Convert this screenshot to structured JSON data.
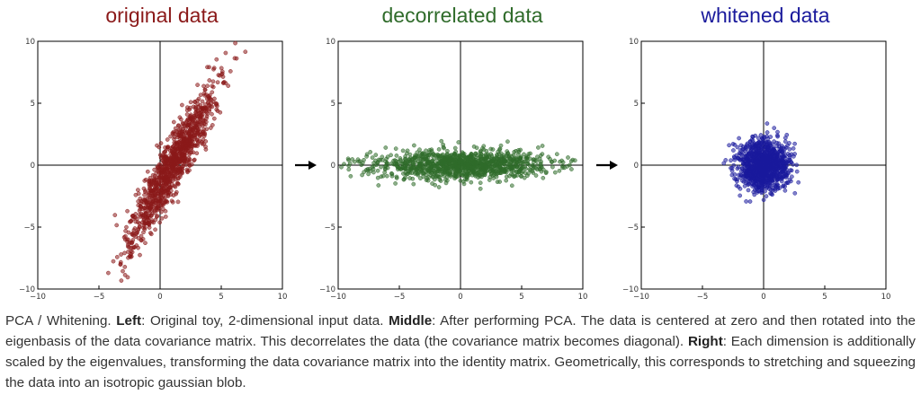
{
  "colors": {
    "original": "#8b1a1a",
    "decorrelated": "#2f6b2a",
    "whitened": "#1a1a9c"
  },
  "chart_data": [
    {
      "type": "scatter",
      "title": "original data",
      "xlim": [
        -10,
        10
      ],
      "ylim": [
        -10,
        10
      ],
      "xticks": [
        "−10",
        "−5",
        "0",
        "5",
        "10"
      ],
      "yticks": [
        "10",
        "5",
        "0",
        "−5",
        "−10"
      ],
      "grid": false,
      "distribution": {
        "mean": [
          1,
          0
        ],
        "principal_std": [
          3.6,
          0.6
        ],
        "angle_deg": 62,
        "n": 1100,
        "seed": 11
      }
    },
    {
      "type": "scatter",
      "title": "decorrelated data",
      "xlim": [
        -10,
        10
      ],
      "ylim": [
        -10,
        10
      ],
      "xticks": [
        "−10",
        "−5",
        "0",
        "5",
        "10"
      ],
      "yticks": [
        "10",
        "5",
        "0",
        "−5",
        "−10"
      ],
      "grid": false,
      "distribution": {
        "mean": [
          0,
          0
        ],
        "principal_std": [
          3.6,
          0.6
        ],
        "angle_deg": 0,
        "n": 1100,
        "seed": 23
      }
    },
    {
      "type": "scatter",
      "title": "whitened data",
      "xlim": [
        -10,
        10
      ],
      "ylim": [
        -10,
        10
      ],
      "xticks": [
        "−10",
        "−5",
        "0",
        "5",
        "10"
      ],
      "yticks": [
        "10",
        "5",
        "0",
        "−5",
        "−10"
      ],
      "grid": false,
      "distribution": {
        "mean": [
          0,
          0
        ],
        "principal_std": [
          1,
          1
        ],
        "angle_deg": 0,
        "n": 1100,
        "seed": 37
      }
    }
  ],
  "caption": {
    "intro": "PCA / Whitening. ",
    "left_label": "Left",
    "left_text": ": Original toy, 2-dimensional input data. ",
    "middle_label": "Middle",
    "middle_text": ": After performing PCA. The data is centered at zero and then rotated into the eigenbasis of the data covariance matrix. This decorrelates the data (the covariance matrix becomes diagonal). ",
    "right_label": "Right",
    "right_text": ": Each dimension is additionally scaled by the eigenvalues, transforming the data covariance matrix into the identity matrix. Geometrically, this corresponds to stretching and squeezing the data into an isotropic gaussian blob."
  }
}
